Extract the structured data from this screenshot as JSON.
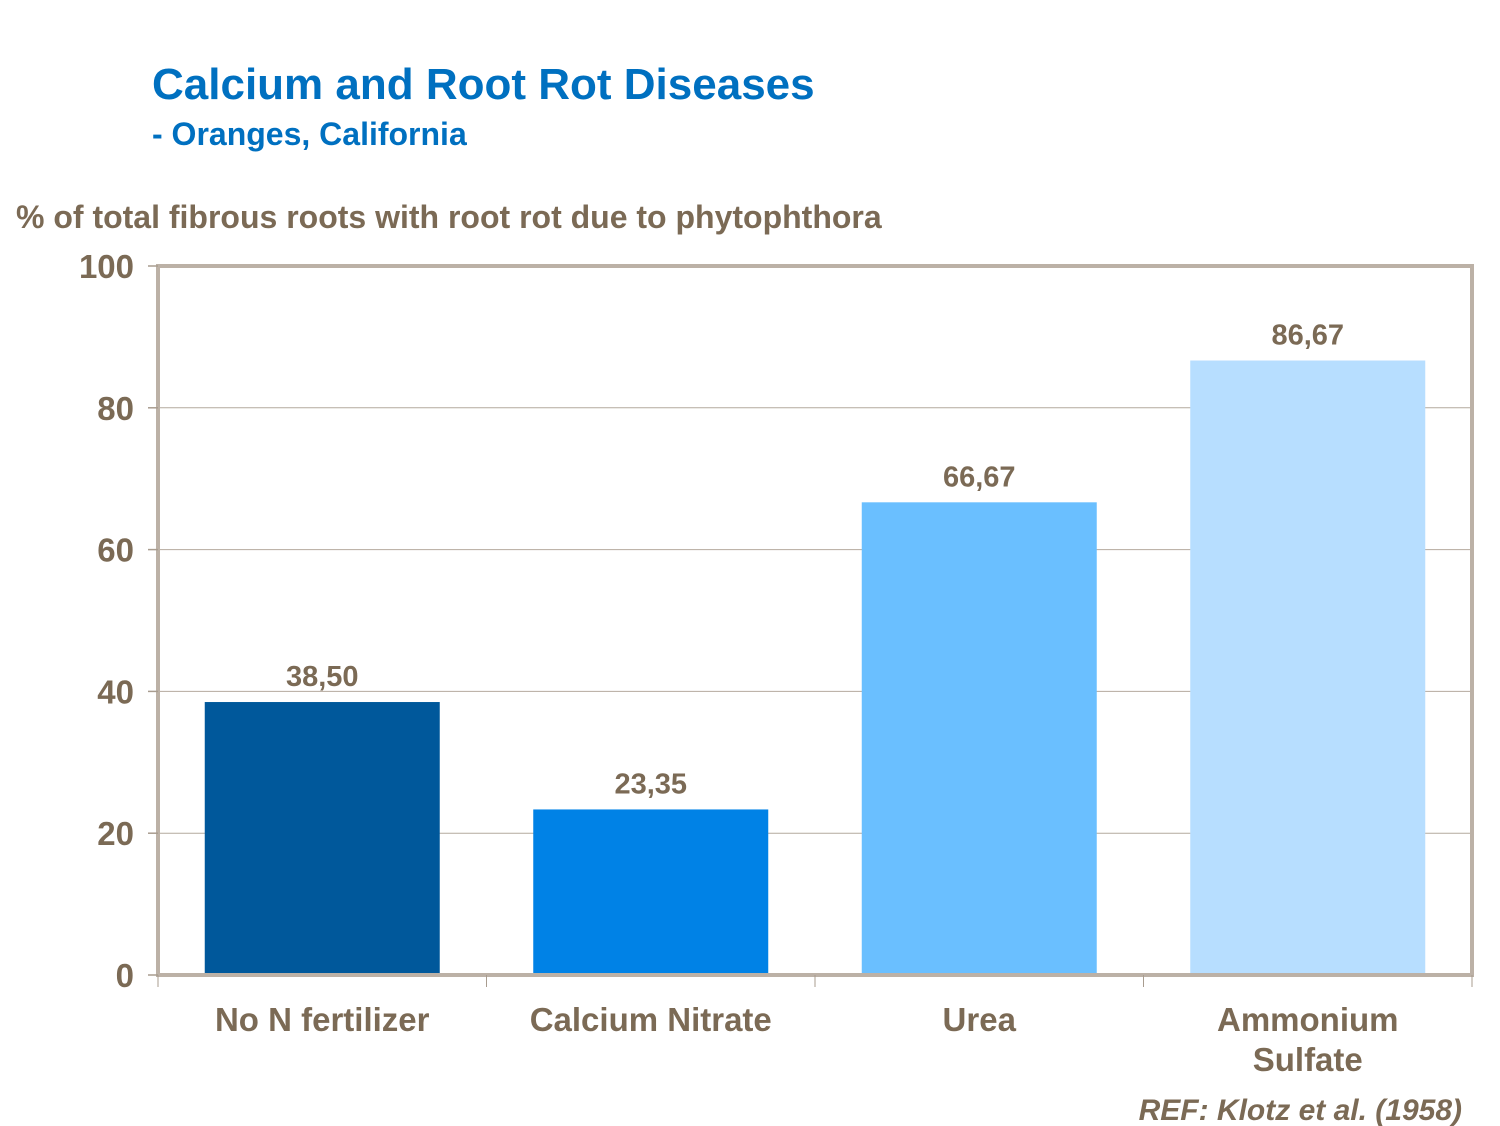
{
  "chart_data": {
    "type": "bar",
    "title": "Calcium and Root Rot Diseases",
    "subtitle": "- Oranges, California",
    "ylabel": "% of total fibrous roots with root rot due to phytophthora",
    "xlabel": "",
    "categories": [
      [
        "No N fertilizer"
      ],
      [
        "Calcium Nitrate"
      ],
      [
        "Urea"
      ],
      [
        "Ammonium",
        "Sulfate"
      ]
    ],
    "values": [
      38.5,
      23.35,
      66.67,
      86.67
    ],
    "data_labels": [
      "38,50",
      "23,35",
      "66,67",
      "86,67"
    ],
    "bar_colors": [
      "#00589B",
      "#0082E6",
      "#6ABFFF",
      "#B7DEFF"
    ],
    "ylim": [
      0,
      100
    ],
    "yticks": [
      0,
      20,
      40,
      60,
      80,
      100
    ],
    "grid": true,
    "legend": "none",
    "footnote": "REF: Klotz et al. (1958)",
    "colors": {
      "title": "#0070C0",
      "text": "#7B6A55",
      "axis": "#BCB1A6",
      "grid": "#B4AA9E"
    }
  }
}
